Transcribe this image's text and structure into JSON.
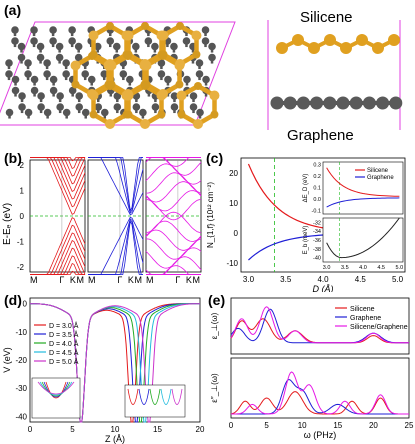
{
  "figure": {
    "panels": {
      "a": {
        "label": "(a)",
        "silicene_label": "Silicene",
        "graphene_label": "Graphene"
      },
      "b": {
        "label": "(b)",
        "ylabel": "E-Eₑ (eV)",
        "yticks": [
          "2",
          "1",
          "0",
          "-1",
          "-2"
        ],
        "xticks": [
          "M",
          "Γ",
          "K",
          "M",
          "Γ",
          "K",
          "M",
          "Γ",
          "K"
        ]
      },
      "c": {
        "label": "(c)",
        "main_ylabel": "N_{1,f} (10¹² cm⁻²)",
        "main_yticks": [
          "20",
          "10",
          "0",
          "-10"
        ],
        "xticks": [
          "3.0",
          "3.5",
          "4.0",
          "4.5",
          "5.0"
        ],
        "xlabel": "D (Å)",
        "inset_top_ylabel": "ΔE_D (eV)",
        "inset_top_yticks": [
          "0.3",
          "0.2",
          "0.1",
          "0.0",
          "-0.1"
        ],
        "inset_bot_ylabel": "E_b (meV)",
        "inset_bot_yticks": [
          "-32",
          "-34",
          "-36",
          "-38",
          "-40"
        ],
        "inset_xticks": [
          "3.0",
          "3.5",
          "4.0",
          "4.5",
          "5.0"
        ],
        "legend": [
          "Silicene",
          "Graphene"
        ]
      },
      "d": {
        "label": "(d)",
        "ylabel": "V (eV)",
        "xlabel": "Z (Å)",
        "yticks": [
          "0",
          "-10",
          "-20",
          "-30",
          "-40"
        ],
        "xticks": [
          "0",
          "5",
          "10",
          "15",
          "20"
        ],
        "legend": [
          "D = 3.0 Å",
          "D = 3.5 Å",
          "D = 4.0 Å",
          "D = 4.5 Å",
          "D = 5.0 Å"
        ]
      },
      "e": {
        "label": "(e)",
        "xlabel": "ω (PHz)",
        "top_ylabel": "ε_⊥(ω)",
        "bot_ylabel": "ε″_⊥(ω)",
        "xticks": [
          "0",
          "5",
          "10",
          "15",
          "20",
          "25"
        ],
        "legend": [
          "Silicene",
          "Graphene",
          "Silicene/Graphene"
        ]
      }
    },
    "colors": {
      "silicene": "#e41a1c",
      "graphene": "#1f1fd6",
      "hetero": "#e619e6",
      "si_atom": "#e0a020",
      "c_atom": "#555555",
      "d_colors": [
        "#e41a1c",
        "#1f1fd6",
        "#22aa22",
        "#22bbdd",
        "#cc33cc"
      ]
    }
  }
}
